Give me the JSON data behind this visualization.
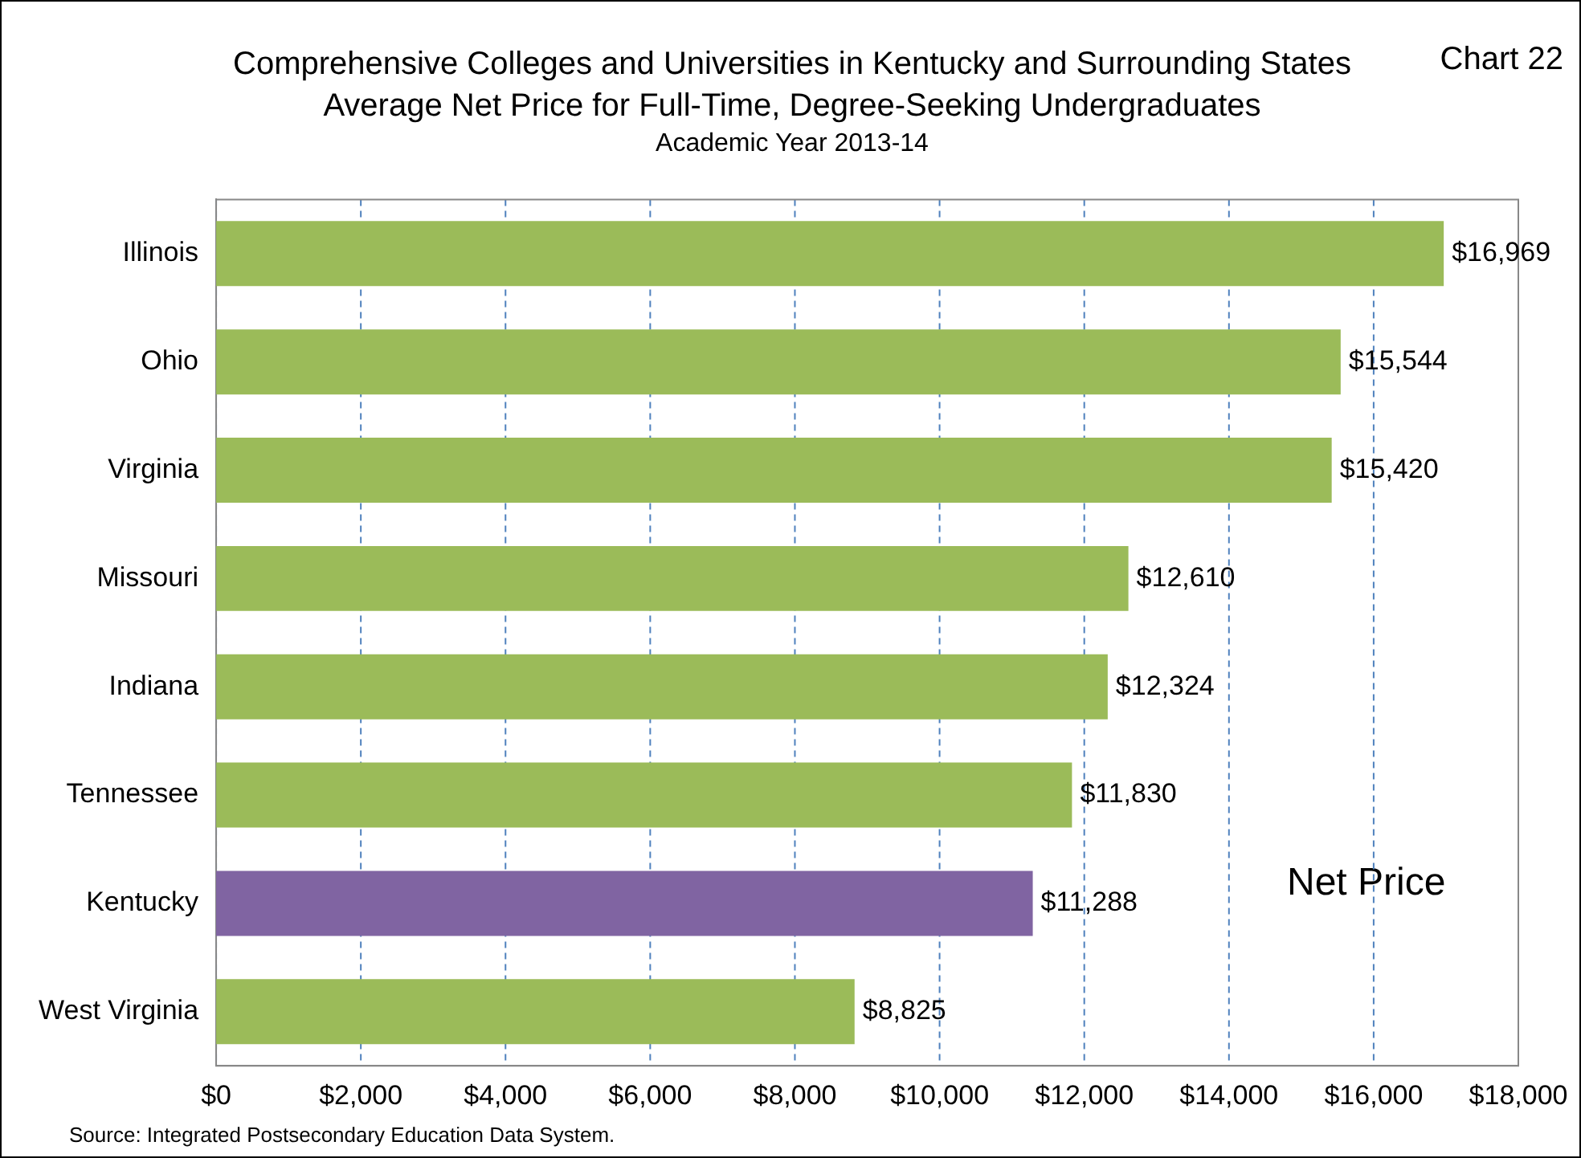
{
  "chart_data": {
    "type": "bar",
    "orientation": "horizontal",
    "title": "Comprehensive Colleges and Universities in Kentucky and Surrounding States",
    "subtitle": "Average Net Price for Full-Time, Degree-Seeking Undergraduates",
    "categories": [
      "Illinois",
      "Ohio",
      "Virginia",
      "Missouri",
      "Indiana",
      "Tennessee",
      "Kentucky",
      "West Virginia"
    ],
    "values": [
      16969,
      15544,
      15420,
      12610,
      12324,
      11830,
      11288,
      8825
    ],
    "colors": [
      "#9bbb59",
      "#9bbb59",
      "#9bbb59",
      "#9bbb59",
      "#9bbb59",
      "#9bbb59",
      "#8064a2",
      "#9bbb59"
    ],
    "value_labels": [
      "$16,969",
      "$15,544",
      "$15,420",
      "$12,610",
      "$12,324",
      "$11,830",
      "$11,288",
      "$8,825"
    ],
    "xlim": [
      0,
      18000
    ],
    "xticks": [
      {
        "value": 0,
        "label": "$0"
      },
      {
        "value": 2000,
        "label": "$2,000"
      },
      {
        "value": 4000,
        "label": "$4,000"
      },
      {
        "value": 6000,
        "label": "$6,000"
      },
      {
        "value": 8000,
        "label": "$8,000"
      },
      {
        "value": 10000,
        "label": "$10,000"
      },
      {
        "value": 12000,
        "label": "$12,000"
      },
      {
        "value": 14000,
        "label": "$14,000"
      },
      {
        "value": 16000,
        "label": "$16,000"
      },
      {
        "value": 18000,
        "label": "$18,000"
      }
    ],
    "grid": "x",
    "line_style": "dashed",
    "legend": false,
    "annotations": [
      "Academic Year 2013-14",
      "Chart 22",
      "Net Price",
      "Source:  Integrated Postsecondary  Education Data System."
    ]
  }
}
